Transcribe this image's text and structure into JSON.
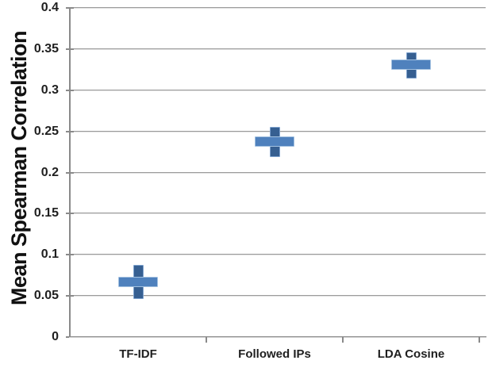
{
  "chart_data": {
    "type": "scatter",
    "title": "",
    "xlabel": "",
    "ylabel": "Mean Spearman Correlation",
    "ylim": [
      0,
      0.4
    ],
    "ytick_step": 0.05,
    "grid": true,
    "legend": false,
    "yticks": [
      {
        "value": 0.4,
        "label": "0.4"
      },
      {
        "value": 0.35,
        "label": "0.35"
      },
      {
        "value": 0.3,
        "label": "0.3"
      },
      {
        "value": 0.25,
        "label": "0.25"
      },
      {
        "value": 0.2,
        "label": "0.2"
      },
      {
        "value": 0.15,
        "label": "0.15"
      },
      {
        "value": 0.1,
        "label": "0.1"
      },
      {
        "value": 0.05,
        "label": "0.05"
      },
      {
        "value": 0,
        "label": "0"
      }
    ],
    "categories": [
      "TF-IDF",
      "Followed IPs",
      "LDA Cosine"
    ],
    "series": [
      {
        "name": "Mean Spearman Correlation",
        "marker": "plus-with-error-bar",
        "points": [
          {
            "category": "TF-IDF",
            "mean": 0.067,
            "error_low": 0.046,
            "error_high": 0.088
          },
          {
            "category": "Followed IPs",
            "mean": 0.238,
            "error_low": 0.219,
            "error_high": 0.255
          },
          {
            "category": "LDA Cosine",
            "mean": 0.331,
            "error_low": 0.314,
            "error_high": 0.346
          }
        ]
      }
    ],
    "colors": {
      "marker_horizontal_bar": "#4F81BD",
      "marker_horizontal_border": "#A3C1E0",
      "marker_vertical_bar": "#365F91",
      "marker_vertical_border": "#7FA3CF",
      "gridline": "#9B9B9B",
      "axis": "#8A8A8A",
      "tick_label": "#1F1F1F",
      "axis_title": "#111111",
      "background": "#FFFFFF"
    }
  }
}
